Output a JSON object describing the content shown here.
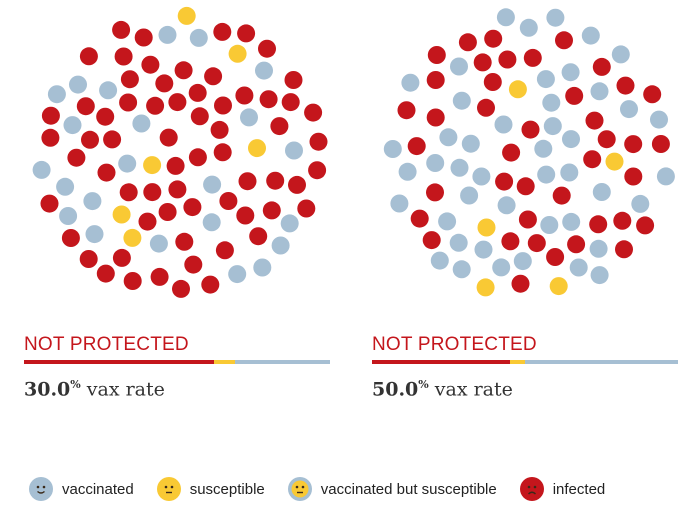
{
  "colors": {
    "vaccinated": "#a6bfd3",
    "susceptible": "#f9c934",
    "infected": "#c4161c",
    "vaccinated_susceptible": "#f9c934"
  },
  "panels": [
    {
      "status_label": "NOT PROTECTED",
      "rate_value": "30.0",
      "rate_pct": "%",
      "rate_suffix": " vax rate",
      "bar_fractions": {
        "infected": 0.62,
        "susceptible": 0.07,
        "vaccinated": 0.31
      },
      "population": {
        "vaccinated": 30,
        "susceptible": 8,
        "infected": 80
      }
    },
    {
      "status_label": "NOT PROTECTED",
      "rate_value": "50.0",
      "rate_pct": "%",
      "rate_suffix": " vax rate",
      "bar_fractions": {
        "infected": 0.45,
        "susceptible": 0.05,
        "vaccinated": 0.5
      },
      "population": {
        "vaccinated": 52,
        "susceptible": 6,
        "infected": 52
      }
    }
  ],
  "legend": [
    {
      "key": "vaccinated",
      "label": "vaccinated",
      "icon": "vaccinated-face-icon"
    },
    {
      "key": "susceptible",
      "label": "susceptible",
      "icon": "susceptible-face-icon"
    },
    {
      "key": "vaccinated_susceptible",
      "label": "vaccinated but susceptible",
      "icon": "vaccinated-susceptible-face-icon"
    },
    {
      "key": "infected",
      "label": "infected",
      "icon": "infected-face-icon"
    }
  ]
}
